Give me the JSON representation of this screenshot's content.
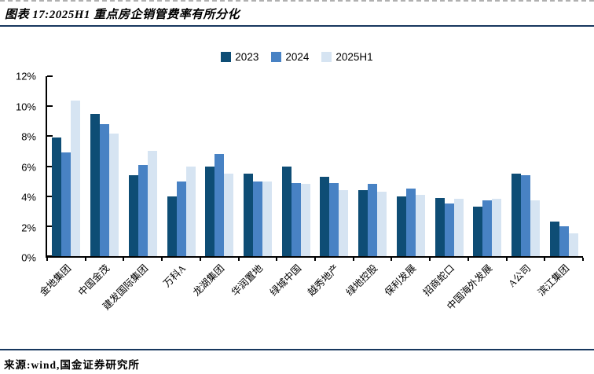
{
  "header": {
    "figure_title": "图表 17:2025H1 重点房企销管费率有所分化"
  },
  "footer": {
    "source": "来源:wind,国金证券研究所"
  },
  "chart_data": {
    "type": "bar",
    "title": "2025H1 重点房企销管费率有所分化",
    "xlabel": "",
    "ylabel": "",
    "ylim": [
      0,
      12
    ],
    "ytick_labels": [
      "0%",
      "2%",
      "4%",
      "6%",
      "8%",
      "10%",
      "12%"
    ],
    "grid": false,
    "legend_position": "top-center",
    "categories": [
      "金地集团",
      "中国金茂",
      "建发国际集团",
      "万科A",
      "龙湖集团",
      "华润置地",
      "绿城中国",
      "越秀地产",
      "绿地控股",
      "保利发展",
      "招商蛇口",
      "中国海外发展",
      "A公司",
      "滨江集团"
    ],
    "series": [
      {
        "name": "2023",
        "color": "#0E4D75",
        "values": [
          7.9,
          9.5,
          5.4,
          4.0,
          6.0,
          5.5,
          6.0,
          5.3,
          4.4,
          4.0,
          3.9,
          3.3,
          5.5,
          2.3
        ]
      },
      {
        "name": "2024",
        "color": "#4882C4",
        "values": [
          6.9,
          8.8,
          6.1,
          5.0,
          6.8,
          5.0,
          4.9,
          4.9,
          4.8,
          4.5,
          3.5,
          3.7,
          5.4,
          2.0
        ]
      },
      {
        "name": "2025H1",
        "color": "#D6E4F2",
        "values": [
          10.4,
          8.2,
          7.0,
          6.0,
          5.5,
          5.0,
          4.8,
          4.4,
          4.3,
          4.1,
          3.8,
          3.8,
          3.7,
          1.5
        ]
      }
    ],
    "unit": "%",
    "colors": {
      "axis": "#000000",
      "rule": "#17375E",
      "background": "#FFFFFF"
    }
  }
}
